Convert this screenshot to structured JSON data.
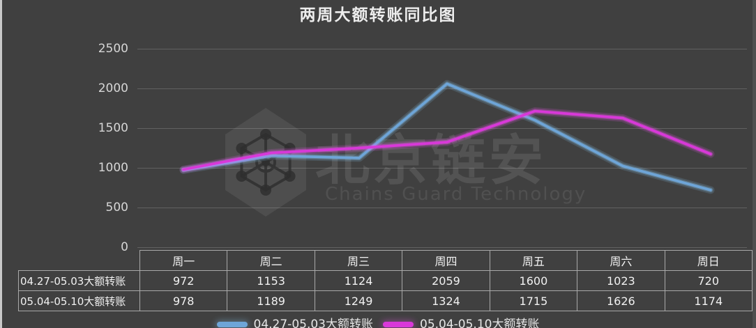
{
  "window": {
    "title": "两周大额转账同比图"
  },
  "watermark": {
    "logo": "hexagon-molecule-logo",
    "brand": "北京链安",
    "subtitle": "Chains Guard Technology"
  },
  "chart_data": {
    "type": "line",
    "title": "两周大额转账同比图",
    "categories": [
      "周一",
      "周二",
      "周三",
      "周四",
      "周五",
      "周六",
      "周日"
    ],
    "series": [
      {
        "name": "04.27-05.03大额转账",
        "color": "#6ea5d8",
        "glow": "#8fd2ff",
        "values": [
          972,
          1153,
          1124,
          2059,
          1600,
          1023,
          720
        ]
      },
      {
        "name": "05.04-05.10大额转账",
        "color": "#d938d9",
        "glow": "#ff5aff",
        "values": [
          978,
          1189,
          1249,
          1324,
          1715,
          1626,
          1174
        ]
      }
    ],
    "ylim": [
      0,
      2500
    ],
    "yticks": [
      0,
      500,
      1000,
      1500,
      2000,
      2500
    ],
    "grid": true,
    "legend_position": "bottom",
    "table_shown": true
  },
  "colors": {
    "background": "#404040",
    "gridline": "#616161",
    "table_border": "#a9a9a9",
    "text": "#ededed"
  }
}
